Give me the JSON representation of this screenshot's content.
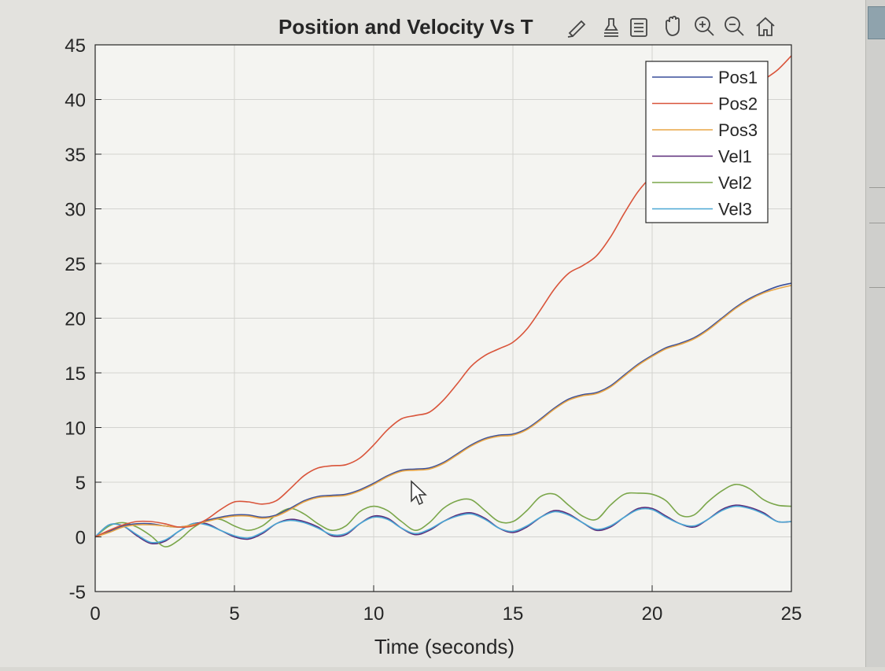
{
  "chart_data": {
    "type": "line",
    "title": "Position and Velocity Vs T",
    "xlabel": "Time (seconds)",
    "ylabel": "",
    "xlim": [
      0,
      25
    ],
    "ylim": [
      -5,
      45
    ],
    "xticks": [
      0,
      5,
      10,
      15,
      20,
      25
    ],
    "yticks": [
      -5,
      0,
      5,
      10,
      15,
      20,
      25,
      30,
      35,
      40,
      45
    ],
    "grid": true,
    "legend": "top-right",
    "x": [
      0,
      0.5,
      1,
      1.5,
      2,
      2.5,
      3,
      3.5,
      4,
      4.5,
      5,
      5.5,
      6,
      6.5,
      7,
      7.5,
      8,
      8.5,
      9,
      9.5,
      10,
      10.5,
      11,
      11.5,
      12,
      12.5,
      13,
      13.5,
      14,
      14.5,
      15,
      15.5,
      16,
      16.5,
      17,
      17.5,
      18,
      18.5,
      19,
      19.5,
      20,
      20.5,
      21,
      21.5,
      22,
      22.5,
      23,
      23.5,
      24,
      24.5,
      25
    ],
    "series": [
      {
        "name": "Pos1",
        "color": "#3a4f9a",
        "values": [
          0,
          0.5,
          1.0,
          1.2,
          1.2,
          1.0,
          0.9,
          1.1,
          1.5,
          1.8,
          2.0,
          2.0,
          1.8,
          2.0,
          2.6,
          3.3,
          3.7,
          3.8,
          3.9,
          4.3,
          4.9,
          5.6,
          6.1,
          6.2,
          6.3,
          6.8,
          7.6,
          8.4,
          9.0,
          9.3,
          9.4,
          9.9,
          10.8,
          11.8,
          12.6,
          13.0,
          13.2,
          13.8,
          14.8,
          15.8,
          16.6,
          17.3,
          17.7,
          18.2,
          19.0,
          20.0,
          21.0,
          21.8,
          22.4,
          22.9,
          23.2
        ]
      },
      {
        "name": "Pos2",
        "color": "#d9543a",
        "values": [
          0,
          0.6,
          1.1,
          1.4,
          1.4,
          1.2,
          0.9,
          1.0,
          1.6,
          2.5,
          3.2,
          3.2,
          3.0,
          3.3,
          4.4,
          5.6,
          6.3,
          6.5,
          6.6,
          7.2,
          8.4,
          9.8,
          10.8,
          11.1,
          11.4,
          12.5,
          14.0,
          15.6,
          16.6,
          17.2,
          17.8,
          19.0,
          20.8,
          22.7,
          24.1,
          24.8,
          25.7,
          27.4,
          29.6,
          31.6,
          33.0,
          33.9,
          34.6,
          35.6,
          37.0,
          38.5,
          39.8,
          40.9,
          41.8,
          42.7,
          44.0
        ]
      },
      {
        "name": "Pos3",
        "color": "#e8a545",
        "values": [
          0,
          0.4,
          0.9,
          1.1,
          1.1,
          1.0,
          0.9,
          1.1,
          1.4,
          1.7,
          1.9,
          1.9,
          1.7,
          1.9,
          2.5,
          3.2,
          3.6,
          3.7,
          3.8,
          4.2,
          4.8,
          5.5,
          6.0,
          6.1,
          6.2,
          6.7,
          7.5,
          8.3,
          8.9,
          9.2,
          9.3,
          9.8,
          10.7,
          11.7,
          12.5,
          12.9,
          13.1,
          13.7,
          14.7,
          15.7,
          16.5,
          17.2,
          17.6,
          18.1,
          18.9,
          19.9,
          20.9,
          21.7,
          22.3,
          22.7,
          23.0
        ]
      },
      {
        "name": "Vel1",
        "color": "#5a2a78",
        "values": [
          0,
          1.1,
          1.0,
          0.1,
          -0.6,
          -0.4,
          0.5,
          1.2,
          1.2,
          0.6,
          0,
          -0.2,
          0.3,
          1.2,
          1.6,
          1.4,
          0.9,
          0.1,
          0.2,
          1.2,
          1.9,
          1.7,
          0.8,
          0.2,
          0.6,
          1.4,
          2.0,
          2.2,
          1.7,
          0.8,
          0.4,
          0.9,
          1.8,
          2.4,
          2.1,
          1.3,
          0.6,
          0.9,
          1.8,
          2.6,
          2.6,
          1.9,
          1.2,
          0.9,
          1.6,
          2.5,
          2.9,
          2.7,
          2.2,
          1.4,
          1.4
        ]
      },
      {
        "name": "Vel2",
        "color": "#7aa64a",
        "values": [
          0,
          1.0,
          1.3,
          0.9,
          0.1,
          -0.9,
          -0.3,
          0.8,
          1.5,
          1.6,
          1.0,
          0.6,
          1.0,
          2.0,
          2.6,
          2.1,
          1.2,
          0.6,
          1.0,
          2.3,
          2.8,
          2.4,
          1.4,
          0.6,
          1.3,
          2.6,
          3.3,
          3.4,
          2.4,
          1.4,
          1.4,
          2.4,
          3.7,
          3.9,
          2.9,
          1.9,
          1.6,
          2.9,
          3.9,
          4.0,
          3.9,
          3.3,
          2.0,
          2.0,
          3.2,
          4.2,
          4.8,
          4.4,
          3.4,
          2.9,
          2.8
        ]
      },
      {
        "name": "Vel3",
        "color": "#4aa7d4",
        "values": [
          0,
          1.1,
          1.0,
          0.2,
          -0.5,
          -0.3,
          0.5,
          1.2,
          1.1,
          0.6,
          0.1,
          -0.1,
          0.4,
          1.2,
          1.5,
          1.3,
          0.8,
          0.2,
          0.3,
          1.2,
          1.8,
          1.6,
          0.8,
          0.3,
          0.7,
          1.4,
          1.9,
          2.1,
          1.6,
          0.8,
          0.5,
          1.0,
          1.8,
          2.3,
          2.0,
          1.3,
          0.7,
          1.0,
          1.8,
          2.5,
          2.5,
          1.8,
          1.2,
          1.0,
          1.6,
          2.4,
          2.8,
          2.6,
          2.1,
          1.4,
          1.4
        ]
      }
    ]
  },
  "toolbar": {
    "icons": [
      "brush-icon",
      "data-tips-icon",
      "legend-icon",
      "pan-icon",
      "zoom-in-icon",
      "zoom-out-icon",
      "home-icon"
    ]
  },
  "colors": {
    "figure_bg": "#e3e2de",
    "axes_bg": "#f4f4f1",
    "grid": "#d3d3d0",
    "axis": "#262626"
  }
}
